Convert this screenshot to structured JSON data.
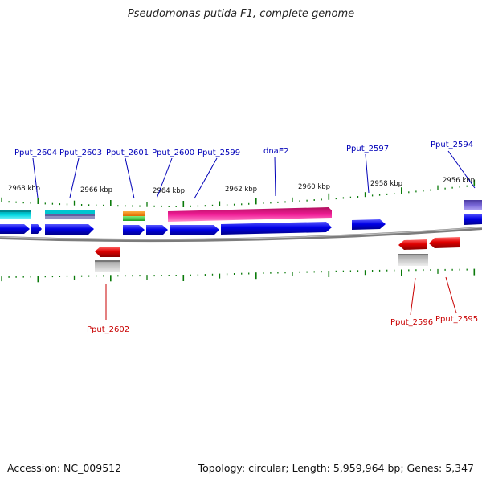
{
  "title": "Pseudomonas putida F1, complete genome",
  "footer": {
    "accession": "Accession: NC_009512",
    "topology": "Topology: circular; Length: 5,959,964 bp; Genes: 5,347"
  },
  "scale_labels": [
    "2968 kbp",
    "2966 kbp",
    "2964 kbp",
    "2962 kbp",
    "2960 kbp",
    "2958 kbp",
    "2956 kbp"
  ],
  "genes": {
    "top": [
      "Pput_2604",
      "Pput_2603",
      "Pput_2601",
      "Pput_2600",
      "Pput_2599",
      "dnaE2",
      "Pput_2597",
      "Pput_2594"
    ],
    "bottom": [
      "Pput_2602",
      "Pput_2596",
      "Pput_2595"
    ]
  },
  "colors": {
    "forward_label": "#0000b8",
    "reverse_label": "#c80000",
    "cds_blue": "#0000e6",
    "cds_red": "#e60000",
    "pink": "#f01c96",
    "cyan": "#00d2dc",
    "backbone": "#8a8a8a",
    "tick": "#0a7a0a"
  }
}
